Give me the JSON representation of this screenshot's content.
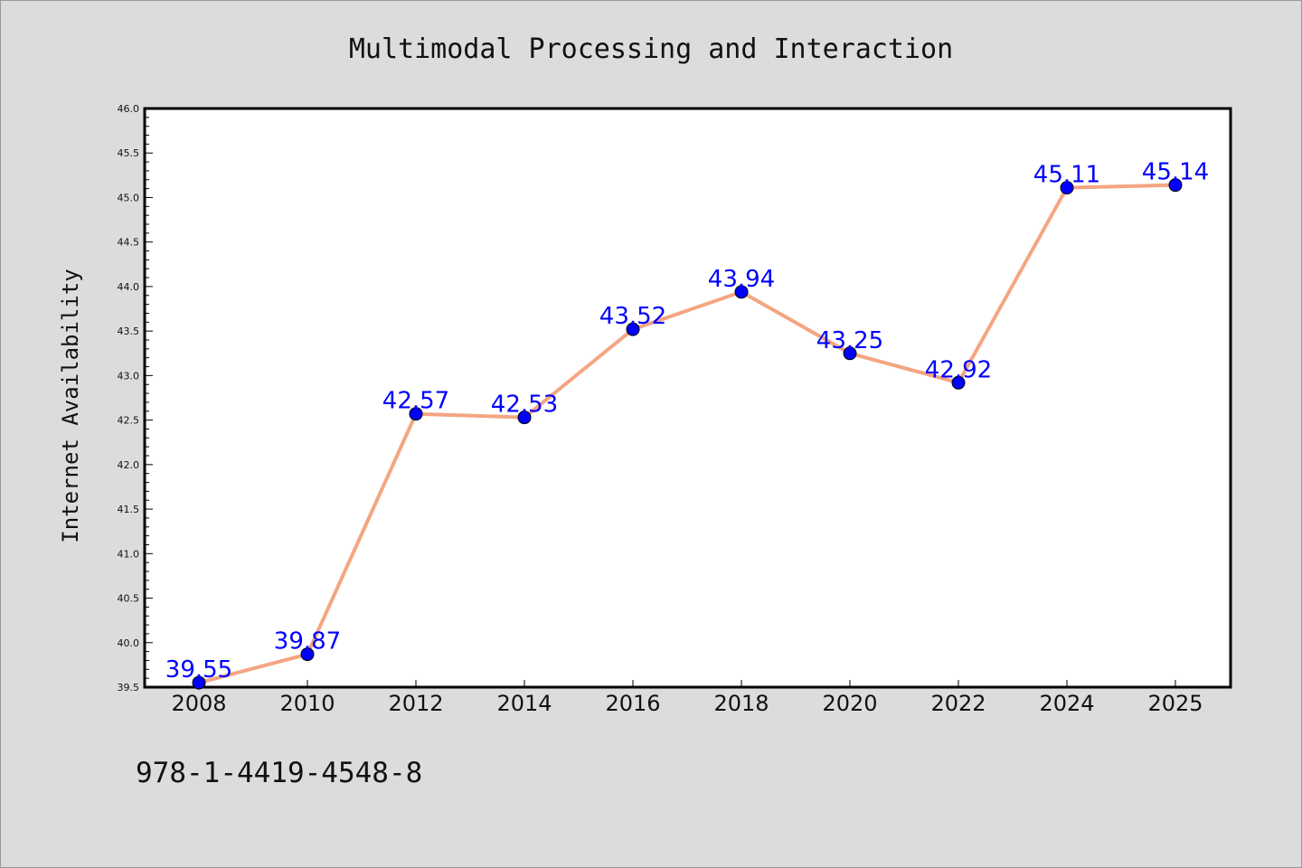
{
  "chart_data": {
    "type": "line",
    "title": "Multimodal Processing and Interaction",
    "xlabel": "",
    "ylabel": "Internet Availability",
    "categories": [
      "2008",
      "2010",
      "2012",
      "2014",
      "2016",
      "2018",
      "2020",
      "2022",
      "2024",
      "2025"
    ],
    "series": [
      {
        "values": [
          39.55,
          39.87,
          42.57,
          42.53,
          43.52,
          43.94,
          43.25,
          42.92,
          45.11,
          45.14
        ],
        "data_labels": [
          "39.55",
          "39.87",
          "42.57",
          "42.53",
          "43.52",
          "43.94",
          "43.25",
          "42.92",
          "45.11",
          "45.14"
        ],
        "line_color": "#f4a582",
        "marker_color": "#0000ff"
      }
    ],
    "ylim": [
      39.5,
      46.0
    ],
    "yticks": [
      "39.5",
      "40.0",
      "40.5",
      "41.0",
      "41.5",
      "42.0",
      "42.5",
      "43.0",
      "43.5",
      "44.0",
      "44.5",
      "45.0",
      "45.5",
      "46.0"
    ],
    "grid": false,
    "legend": "none",
    "label_color": "#0000ff"
  },
  "footer": {
    "isbn": "978-1-4419-4548-8"
  },
  "colors": {
    "background": "#dcdcdc",
    "plot_area": "#ffffff",
    "line": "#f4a582",
    "marker": "#0000ff"
  }
}
